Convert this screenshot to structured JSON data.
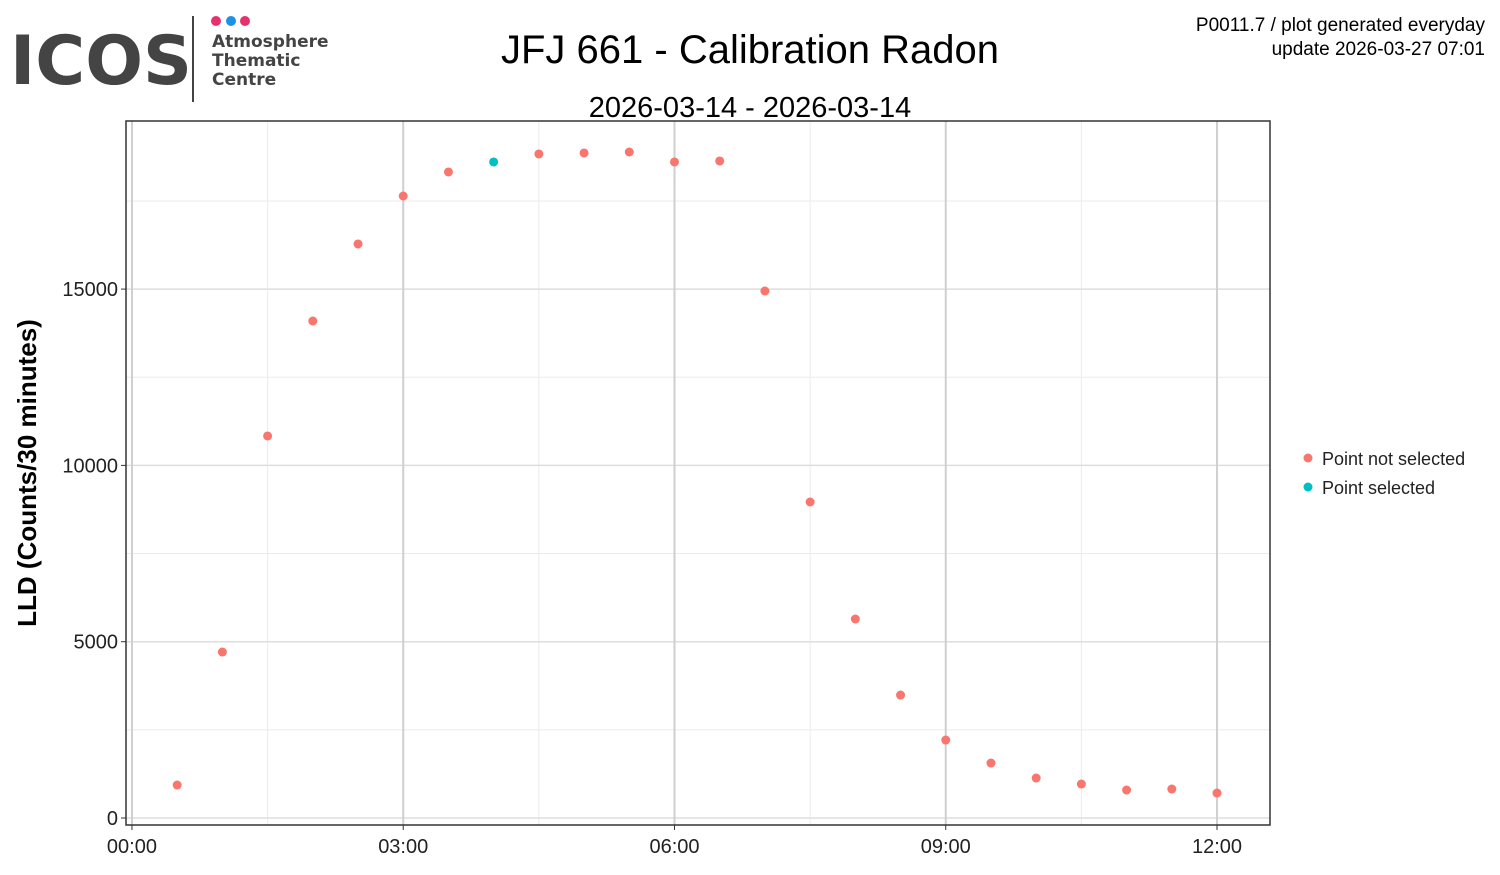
{
  "logo": {
    "text": "ICOS",
    "lines": [
      "Atmosphere",
      "Thematic",
      "Centre"
    ]
  },
  "note_lines": [
    "P0011.7 / plot generated everyday",
    "update  2026-03-27 07:01"
  ],
  "chart_data": {
    "type": "scatter",
    "title": "JFJ 661 - Calibration Radon",
    "subtitle": "2026-03-14 - 2026-03-14",
    "y_label": "LLD (Counts/30 minutes)",
    "x": [
      0.5,
      1,
      1.5,
      2,
      2.5,
      3,
      3.5,
      4,
      4.5,
      5,
      5.5,
      6,
      6.5,
      7,
      7.5,
      8,
      8.5,
      9,
      9.5,
      10,
      10.5,
      11,
      11.5,
      12
    ],
    "series": [
      {
        "name": "Point not selected",
        "color": "#F8766D",
        "values": [
          936,
          4708,
          10834,
          14095,
          16279,
          17640,
          18321,
          null,
          18832,
          18860,
          18888,
          18605,
          18633,
          14946,
          8962,
          5644,
          3488,
          2212,
          1560,
          1134,
          964,
          794,
          822,
          709
        ]
      },
      {
        "name": "Point selected",
        "color": "#00BFC4",
        "values": [
          null,
          null,
          null,
          null,
          null,
          null,
          null,
          18605,
          null,
          null,
          null,
          null,
          null,
          null,
          null,
          null,
          null,
          null,
          null,
          null,
          null,
          null,
          null,
          null
        ]
      }
    ],
    "xlim": [
      -0.066,
      12.586
    ],
    "xticks": [
      {
        "value": 0,
        "label": "00:00"
      },
      {
        "value": 3,
        "label": "03:00"
      },
      {
        "value": 6,
        "label": "06:00"
      },
      {
        "value": 9,
        "label": "09:00"
      },
      {
        "value": 12,
        "label": "12:00"
      }
    ],
    "ylim": [
      -198,
      19767
    ],
    "yticks": [
      0,
      5000,
      10000,
      15000
    ],
    "minor_xgrid": [
      1.5,
      4.5,
      7.5,
      10.5
    ],
    "minor_ygrid": [
      2500,
      7500,
      12500,
      17500
    ],
    "grid": true,
    "legend": "right"
  }
}
